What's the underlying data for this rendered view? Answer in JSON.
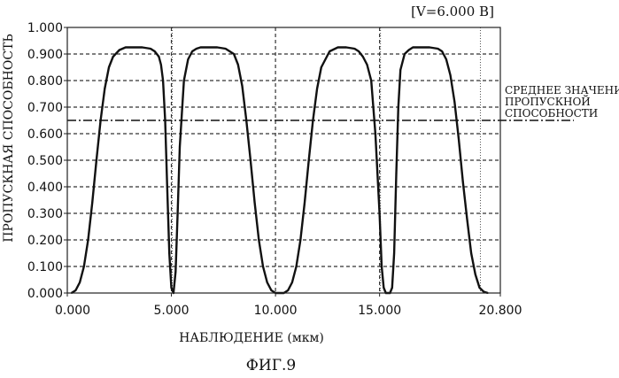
{
  "chart_data": {
    "type": "line",
    "voltage_label": "[V=6.000 В]",
    "ylabel": "ПРОПУСКНАЯ СПОСОБНОСТЬ",
    "xlabel": "НАБЛЮДЕНИЕ (мкм)",
    "xlim": [
      0,
      20.8
    ],
    "ylim": [
      0,
      1.0
    ],
    "x_ticks": [
      {
        "value": 0,
        "label": "0.000"
      },
      {
        "value": 5,
        "label": "5.000"
      },
      {
        "value": 10,
        "label": "10.000"
      },
      {
        "value": 15,
        "label": "15.000"
      },
      {
        "value": 20.8,
        "label": "20.800"
      }
    ],
    "y_ticks": [
      {
        "value": 0.0,
        "label": "0.000"
      },
      {
        "value": 0.1,
        "label": "0.100"
      },
      {
        "value": 0.2,
        "label": "0.200"
      },
      {
        "value": 0.3,
        "label": "0.300"
      },
      {
        "value": 0.4,
        "label": "0.400"
      },
      {
        "value": 0.5,
        "label": "0.500"
      },
      {
        "value": 0.6,
        "label": "0.600"
      },
      {
        "value": 0.7,
        "label": "0.700"
      },
      {
        "value": 0.8,
        "label": "0.800"
      },
      {
        "value": 0.9,
        "label": "0.900"
      },
      {
        "value": 1.0,
        "label": "1.000"
      }
    ],
    "grid": true,
    "series": [
      {
        "color": "#111111",
        "x": [
          0.2,
          0.4,
          0.6,
          0.8,
          1.0,
          1.2,
          1.4,
          1.6,
          1.8,
          2.0,
          2.2,
          2.5,
          2.8,
          3.2,
          3.6,
          4.0,
          4.2,
          4.4,
          4.5,
          4.6,
          4.7,
          4.8,
          4.9,
          5.0,
          5.1,
          5.2,
          5.3,
          5.4,
          5.6,
          5.8,
          6.0,
          6.2,
          6.4,
          6.8,
          7.2,
          7.6,
          8.0,
          8.2,
          8.4,
          8.6,
          8.8,
          9.0,
          9.2,
          9.4,
          9.6,
          9.8,
          10.0,
          10.2,
          10.4,
          10.6,
          10.8,
          11.0,
          11.2,
          11.4,
          11.6,
          11.8,
          12.0,
          12.2,
          12.6,
          13.0,
          13.4,
          13.8,
          14.0,
          14.2,
          14.4,
          14.6,
          14.8,
          15.0,
          15.1,
          15.2,
          15.3,
          15.4,
          15.5,
          15.6,
          15.7,
          15.8,
          15.9,
          16.0,
          16.2,
          16.4,
          16.6,
          16.8,
          17.0,
          17.4,
          17.8,
          18.0,
          18.2,
          18.4,
          18.6,
          18.8,
          19.0,
          19.2,
          19.4,
          19.6,
          19.8,
          20.0,
          20.2
        ],
        "y": [
          0.0,
          0.01,
          0.04,
          0.1,
          0.2,
          0.34,
          0.5,
          0.65,
          0.77,
          0.85,
          0.89,
          0.915,
          0.925,
          0.925,
          0.925,
          0.92,
          0.91,
          0.89,
          0.86,
          0.8,
          0.65,
          0.4,
          0.15,
          0.02,
          0.0,
          0.08,
          0.3,
          0.55,
          0.8,
          0.88,
          0.91,
          0.92,
          0.925,
          0.925,
          0.925,
          0.92,
          0.9,
          0.86,
          0.78,
          0.65,
          0.5,
          0.34,
          0.2,
          0.1,
          0.04,
          0.01,
          0.0,
          0.0,
          0.0,
          0.01,
          0.04,
          0.1,
          0.2,
          0.34,
          0.5,
          0.65,
          0.77,
          0.85,
          0.91,
          0.925,
          0.925,
          0.92,
          0.91,
          0.89,
          0.86,
          0.8,
          0.6,
          0.3,
          0.1,
          0.02,
          0.0,
          0.0,
          0.0,
          0.02,
          0.15,
          0.45,
          0.7,
          0.84,
          0.9,
          0.915,
          0.925,
          0.925,
          0.925,
          0.925,
          0.92,
          0.91,
          0.88,
          0.82,
          0.72,
          0.58,
          0.42,
          0.28,
          0.15,
          0.07,
          0.02,
          0.005,
          0.0
        ]
      }
    ],
    "mean_line": {
      "value": 0.65,
      "color": "#111111",
      "label_lines": [
        "СРЕДНЕЕ ЗНАЧЕНИЕ",
        "ПРОПУСКНОЙ",
        "СПОСОБНОСТИ"
      ]
    },
    "dotted_verticals": [
      5.0,
      15.0,
      19.8
    ]
  },
  "figure_label": "ФИГ.9"
}
